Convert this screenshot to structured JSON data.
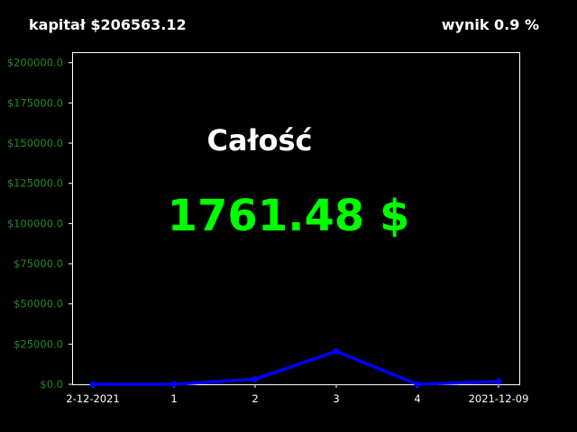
{
  "header": {
    "capital_label": "kapitał $206563.12",
    "result_label": "wynik  0.9 %"
  },
  "overlay": {
    "title": "Całość",
    "value": "1761.48 $"
  },
  "colors": {
    "background": "#000000",
    "line": "#0000ff",
    "ytick": "#228b22",
    "value": "#00ff00"
  },
  "chart_data": {
    "type": "line",
    "categories": [
      "2-12-2021",
      "1",
      "2",
      "3",
      "4",
      "2021-12-09"
    ],
    "series": [
      {
        "values": [
          0,
          0,
          3200,
          20500,
          0,
          1761.48
        ]
      }
    ],
    "yticks": [
      "$0.0",
      "$25000.0",
      "$50000.0",
      "$75000.0",
      "$100000.0",
      "$125000.0",
      "$150000.0",
      "$175000.0",
      "$200000.0"
    ],
    "ylim": [
      0,
      206563.12
    ],
    "grid": false,
    "title": "",
    "xlabel": "",
    "ylabel": ""
  }
}
